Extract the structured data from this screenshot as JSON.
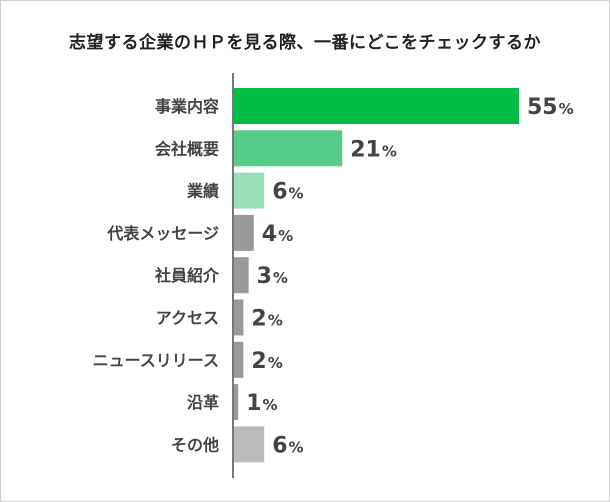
{
  "chart_data": {
    "type": "bar",
    "orientation": "horizontal",
    "title": "志望する企業のＨＰを見る際、一番にどこをチェックするか",
    "categories": [
      "事業内容",
      "会社概要",
      "業績",
      "代表メッセージ",
      "社員紹介",
      "アクセス",
      "ニュースリリース",
      "沿革",
      "その他"
    ],
    "values": [
      55,
      21,
      6,
      4,
      3,
      2,
      2,
      1,
      6
    ],
    "value_suffix": "%",
    "colors": [
      "#00bb44",
      "#55cc88",
      "#99e0b8",
      "#999999",
      "#999999",
      "#999999",
      "#999999",
      "#999999",
      "#bbbbbb"
    ],
    "xlim": [
      0,
      55
    ],
    "grid": false,
    "legend": "none"
  }
}
